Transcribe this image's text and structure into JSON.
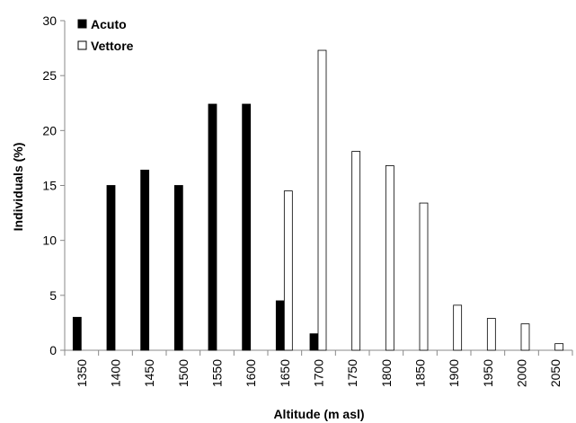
{
  "chart_data": {
    "type": "bar",
    "title": "",
    "xlabel": "Altitude (m asl)",
    "ylabel": "Individuals (%)",
    "ylim": [
      0,
      30
    ],
    "yticks": [
      "0",
      "5",
      "10",
      "15",
      "20",
      "25",
      "30"
    ],
    "categories": [
      "1350",
      "1400",
      "1450",
      "1500",
      "1550",
      "1600",
      "1650",
      "1700",
      "1750",
      "1800",
      "1850",
      "1900",
      "1950",
      "2000",
      "2050"
    ],
    "series": [
      {
        "name": "Acuto",
        "fill": "#000000",
        "values": [
          3.0,
          15.0,
          16.4,
          15.0,
          22.4,
          22.4,
          4.5,
          1.5,
          null,
          null,
          null,
          null,
          null,
          null,
          null
        ]
      },
      {
        "name": "Vettore",
        "fill": "#ffffff",
        "values": [
          null,
          null,
          null,
          null,
          null,
          null,
          14.5,
          27.3,
          18.1,
          16.8,
          13.4,
          4.1,
          2.9,
          2.4,
          0.6
        ]
      }
    ],
    "grid": false,
    "legend_position": "top-left"
  }
}
